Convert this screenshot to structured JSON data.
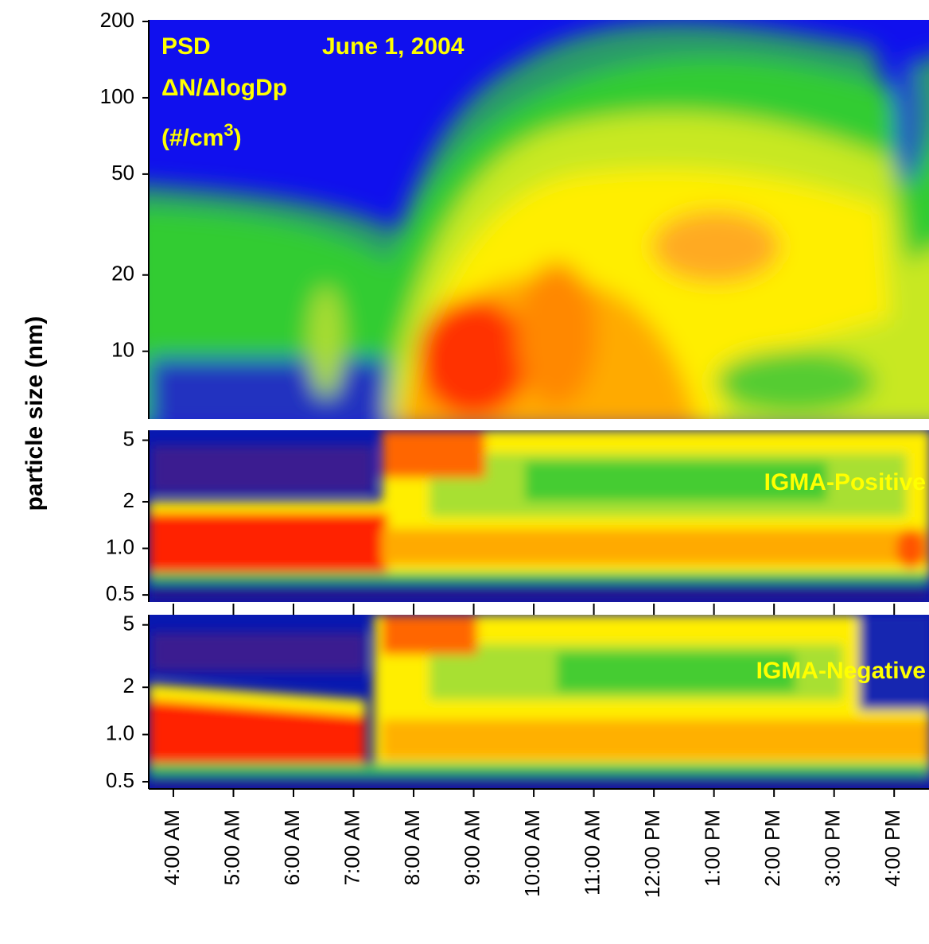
{
  "chart_data": [
    {
      "type": "heatmap",
      "title": "PSD",
      "subtitle": "June 1, 2004",
      "quantity": "ΔN/ΔlogDp",
      "units": [
        "(#/cm",
        "3",
        ")"
      ],
      "ylabel": "particle size (nm)",
      "log_y": true,
      "ylim": [
        5.4,
        200
      ],
      "yticks": [
        10,
        20,
        50,
        100,
        200
      ]
    },
    {
      "type": "heatmap",
      "label": "IGMA-Positive",
      "log_y": true,
      "ylim": [
        0.45,
        5.8
      ],
      "yticks": [
        0.5,
        {
          "value": 1,
          "label": "1.0"
        },
        2,
        5
      ]
    },
    {
      "type": "heatmap",
      "label": "IGMA-Negative",
      "log_y": true,
      "ylim": [
        0.45,
        5.8
      ],
      "yticks": [
        0.5,
        {
          "value": 1,
          "label": "1.0"
        },
        2,
        5
      ],
      "xlim": [
        3.59,
        16.58
      ],
      "xticks": [
        {
          "value": 4,
          "label": "4:00 AM"
        },
        {
          "value": 5,
          "label": "5:00 AM"
        },
        {
          "value": 6,
          "label": "6:00 AM"
        },
        {
          "value": 7,
          "label": "7:00 AM"
        },
        {
          "value": 8,
          "label": "8:00 AM"
        },
        {
          "value": 9,
          "label": "9:00 AM"
        },
        {
          "value": 10,
          "label": "10:00 AM"
        },
        {
          "value": 11,
          "label": "11:00 AM"
        },
        {
          "value": 12,
          "label": "12:00 PM"
        },
        {
          "value": 13,
          "label": "1:00 PM"
        },
        {
          "value": 14,
          "label": "2:00 PM"
        },
        {
          "value": 15,
          "label": "3:00 PM"
        },
        {
          "value": 16,
          "label": "4:00 PM"
        }
      ]
    }
  ]
}
